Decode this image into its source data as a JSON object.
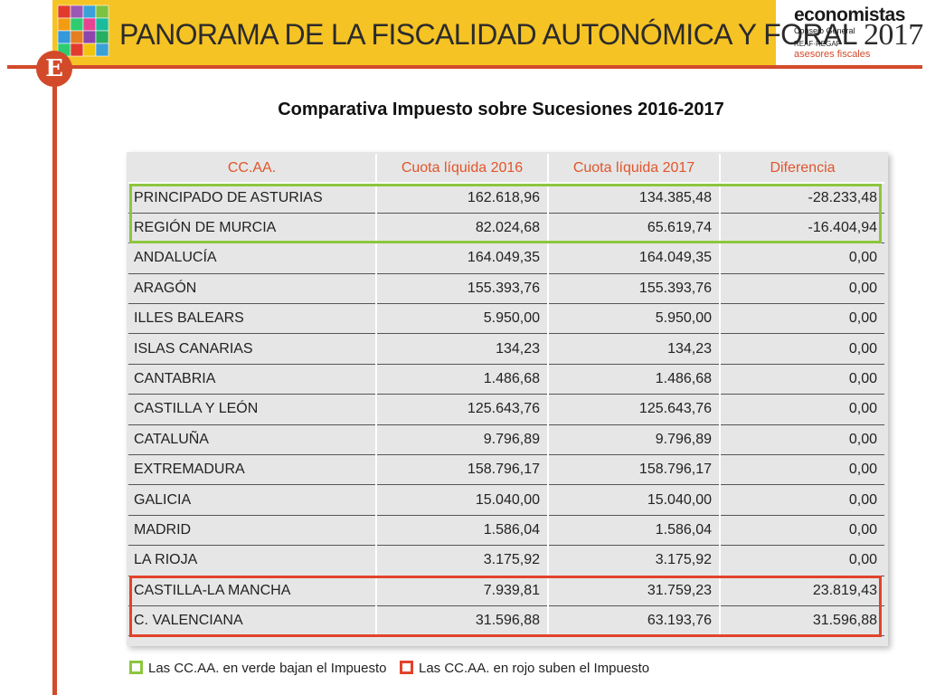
{
  "header": {
    "banner_title": "PANORAMA DE LA FISCALIDAD AUTONÓMICA Y FORAL",
    "banner_year": "2017",
    "org": {
      "name": "economistas",
      "sub": "Consejo General",
      "sub2": "REAF·REGAF",
      "sub3": "asesores fiscales"
    },
    "badge_letter": "E"
  },
  "page_title": "Comparativa Impuesto sobre Sucesiones 2016-2017",
  "table": {
    "columns": [
      "CC.AA.",
      "Cuota líquida 2016",
      "Cuota líquida 2017",
      "Diferencia"
    ],
    "rows": [
      {
        "name": "PRINCIPADO DE ASTURIAS",
        "q2016": "162.618,96",
        "q2017": "134.385,48",
        "diff": "-28.233,48"
      },
      {
        "name": "REGIÓN DE MURCIA",
        "q2016": "82.024,68",
        "q2017": "65.619,74",
        "diff": "-16.404,94"
      },
      {
        "name": "ANDALUCÍA",
        "q2016": "164.049,35",
        "q2017": "164.049,35",
        "diff": "0,00"
      },
      {
        "name": "ARAGÓN",
        "q2016": "155.393,76",
        "q2017": "155.393,76",
        "diff": "0,00"
      },
      {
        "name": "ILLES BALEARS",
        "q2016": "5.950,00",
        "q2017": "5.950,00",
        "diff": "0,00"
      },
      {
        "name": "ISLAS CANARIAS",
        "q2016": "134,23",
        "q2017": "134,23",
        "diff": "0,00"
      },
      {
        "name": "CANTABRIA",
        "q2016": "1.486,68",
        "q2017": "1.486,68",
        "diff": "0,00"
      },
      {
        "name": "CASTILLA Y LEÓN",
        "q2016": "125.643,76",
        "q2017": "125.643,76",
        "diff": "0,00"
      },
      {
        "name": "CATALUÑA",
        "q2016": "9.796,89",
        "q2017": "9.796,89",
        "diff": "0,00"
      },
      {
        "name": "EXTREMADURA",
        "q2016": "158.796,17",
        "q2017": "158.796,17",
        "diff": "0,00"
      },
      {
        "name": "GALICIA",
        "q2016": "15.040,00",
        "q2017": "15.040,00",
        "diff": "0,00"
      },
      {
        "name": "MADRID",
        "q2016": "1.586,04",
        "q2017": "1.586,04",
        "diff": "0,00"
      },
      {
        "name": "LA RIOJA",
        "q2016": "3.175,92",
        "q2017": "3.175,92",
        "diff": "0,00"
      },
      {
        "name": "CASTILLA-LA MANCHA",
        "q2016": "7.939,81",
        "q2017": "31.759,23",
        "diff": "23.819,43"
      },
      {
        "name": "C. VALENCIANA",
        "q2016": "31.596,88",
        "q2017": "63.193,76",
        "diff": "31.596,88"
      }
    ]
  },
  "legend": {
    "green": "Las CC.AA. en verde bajan el Impuesto",
    "red": "Las CC.AA. en rojo suben el Impuesto"
  },
  "colors": {
    "banner": "#f6c324",
    "brand_red": "#d24a2a",
    "highlight_green": "#8dc63f",
    "highlight_red": "#e2432a",
    "header_text": "#e0552b"
  }
}
